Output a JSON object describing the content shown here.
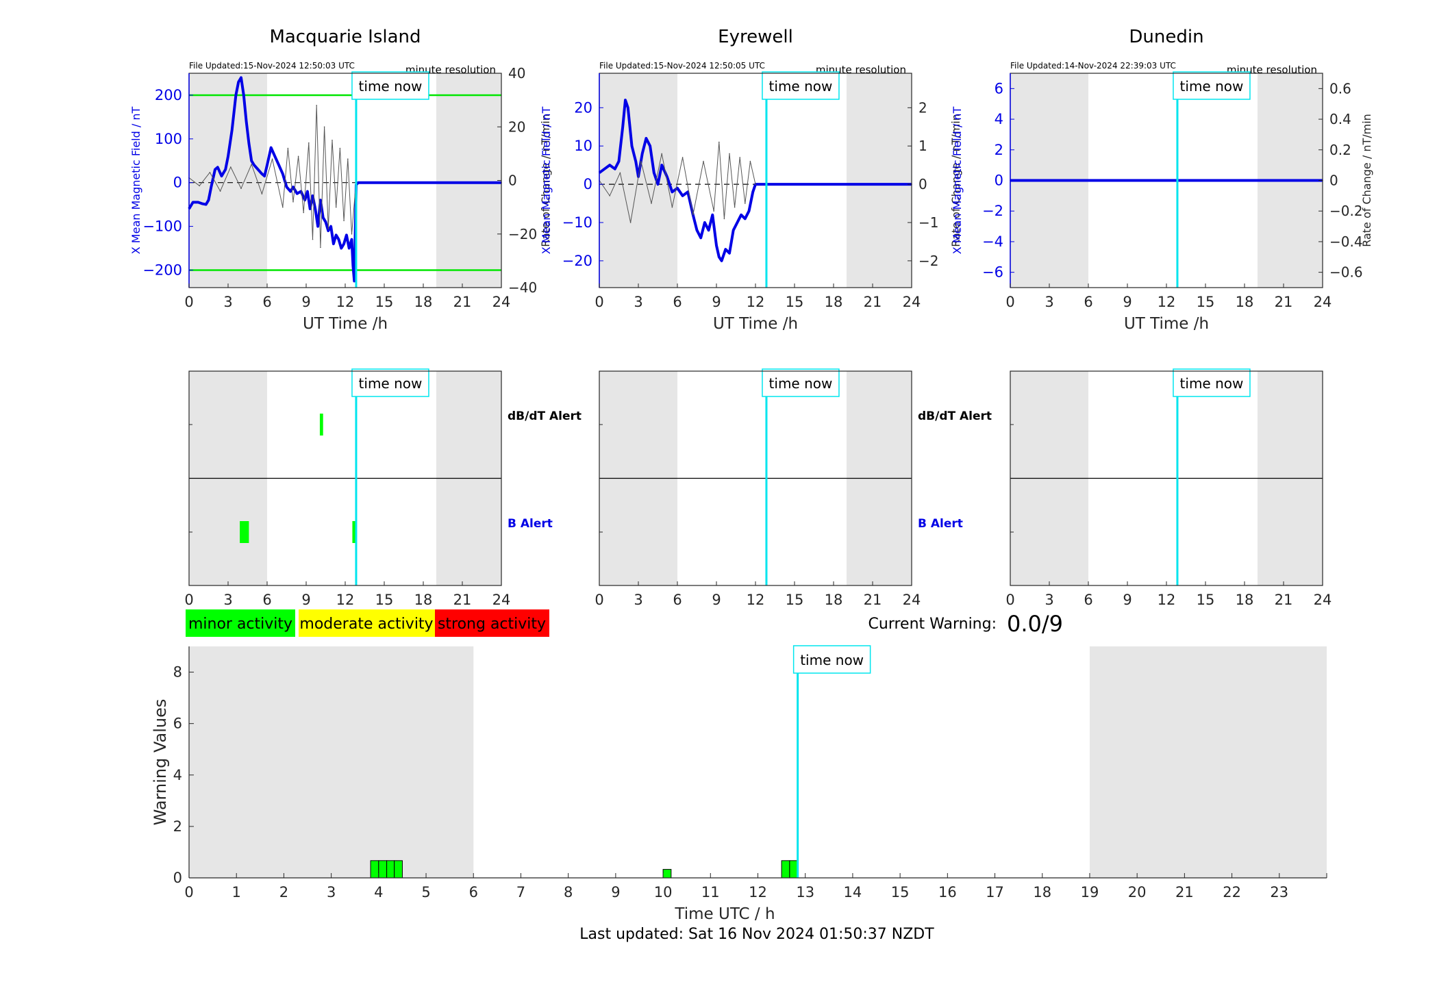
{
  "time_now_label": "time now",
  "resolution_label": "minute resolution",
  "x_axis_label": "UT Time /h",
  "left_axis_label": "X Mean Magnetic Field / nT",
  "right_axis_label": "Rate of Change / nT/min",
  "dbdt_label": "dB/dT Alert",
  "b_alert_label": "B Alert",
  "current_warning_label": "Current Warning:",
  "current_warning_value": "0.0/9",
  "legend": {
    "minor": "minor activity",
    "moderate": "moderate activity",
    "strong": "strong activity"
  },
  "footer": "Last updated: Sat 16 Nov 2024 01:50:37 NZDT",
  "colors": {
    "field": "#0000e6",
    "rate": "#555555",
    "now": "#00e5ee",
    "threshold": "#00e600",
    "night": "#e6e6e6",
    "minor": "#00ff00",
    "moderate": "#ffff00",
    "strong": "#ff0000"
  },
  "now_hour": 12.84,
  "chart_data": [
    {
      "type": "line",
      "title": "Macquarie Island",
      "file_updated": "File Updated:15-Nov-2024 12:50:03 UTC",
      "xlabel": "UT Time /h",
      "ylabel": "X Mean Magnetic Field / nT",
      "y2label": "Rate of Change / nT/min",
      "xlim": [
        0,
        24
      ],
      "xticks": [
        0,
        3,
        6,
        9,
        12,
        15,
        18,
        21,
        24
      ],
      "ylim": [
        -240,
        250
      ],
      "yticks": [
        -200,
        -100,
        0,
        100,
        200
      ],
      "y2lim": [
        -40,
        40
      ],
      "y2ticks": [
        -40,
        -20,
        0,
        20,
        40
      ],
      "thresholds": [
        200,
        -200
      ],
      "night_shading": [
        [
          0,
          6
        ],
        [
          19,
          24
        ]
      ],
      "series": [
        {
          "role": "field",
          "x": [
            0,
            0.3,
            0.7,
            1.0,
            1.3,
            1.5,
            1.7,
            2.0,
            2.2,
            2.5,
            2.8,
            3.0,
            3.3,
            3.6,
            3.8,
            4.0,
            4.2,
            4.4,
            4.6,
            4.8,
            5.0,
            5.3,
            5.6,
            5.8,
            6.0,
            6.3,
            6.6,
            6.9,
            7.2,
            7.5,
            7.8,
            8.0,
            8.3,
            8.6,
            8.9,
            9.1,
            9.3,
            9.5,
            9.7,
            9.9,
            10.1,
            10.3,
            10.5,
            10.7,
            10.9,
            11.1,
            11.3,
            11.5,
            11.7,
            11.9,
            12.1,
            12.3,
            12.5,
            12.6,
            12.7,
            12.84,
            13.0,
            24.0
          ],
          "y": [
            -60,
            -45,
            -45,
            -48,
            -50,
            -40,
            -10,
            30,
            35,
            15,
            30,
            60,
            120,
            200,
            230,
            240,
            200,
            140,
            90,
            50,
            40,
            30,
            20,
            15,
            40,
            80,
            60,
            40,
            20,
            -10,
            -20,
            -10,
            -25,
            -20,
            -40,
            -20,
            -60,
            -30,
            -60,
            -100,
            -40,
            -80,
            -90,
            -110,
            -100,
            -140,
            -120,
            -130,
            -150,
            -140,
            -120,
            -150,
            -130,
            -190,
            -225,
            -5,
            0,
            0
          ]
        },
        {
          "role": "rate",
          "x": [
            0,
            0.8,
            1.6,
            2.4,
            3.2,
            4.0,
            4.8,
            5.6,
            6.4,
            7.2,
            7.6,
            8.0,
            8.4,
            8.8,
            9.2,
            9.5,
            9.8,
            10.1,
            10.4,
            10.7,
            11.0,
            11.3,
            11.6,
            11.9,
            12.2,
            12.5,
            12.84
          ],
          "y": [
            1,
            -2,
            3,
            -4,
            5,
            -3,
            6,
            -5,
            8,
            -10,
            12,
            -8,
            9,
            -12,
            14,
            -22,
            28,
            -25,
            20,
            -18,
            15,
            -10,
            12,
            -15,
            8,
            -20,
            0
          ]
        }
      ],
      "alerts": {
        "dbdt": [
          [
            10.05,
            10.3
          ]
        ],
        "b": [
          [
            3.9,
            4.6
          ],
          [
            12.55,
            12.85
          ]
        ]
      }
    },
    {
      "type": "line",
      "title": "Eyrewell",
      "file_updated": "File Updated:15-Nov-2024 12:50:05 UTC",
      "xlabel": "UT Time /h",
      "ylabel": "X Mean Magnetic Field / nT",
      "y2label": "Rate of Change / nT/min",
      "xlim": [
        0,
        24
      ],
      "xticks": [
        0,
        3,
        6,
        9,
        12,
        15,
        18,
        21,
        24
      ],
      "ylim": [
        -27,
        29
      ],
      "yticks": [
        -20,
        -10,
        0,
        10,
        20
      ],
      "y2lim": [
        -2.7,
        2.9
      ],
      "y2ticks": [
        -2,
        -1,
        0,
        1,
        2
      ],
      "night_shading": [
        [
          0,
          6
        ],
        [
          19,
          24
        ]
      ],
      "series": [
        {
          "role": "field",
          "x": [
            0,
            0.4,
            0.8,
            1.2,
            1.5,
            1.8,
            2.0,
            2.2,
            2.5,
            2.8,
            3.0,
            3.3,
            3.6,
            3.9,
            4.2,
            4.5,
            4.8,
            5.2,
            5.6,
            6.0,
            6.4,
            6.8,
            7.2,
            7.5,
            7.8,
            8.1,
            8.4,
            8.7,
            9.0,
            9.2,
            9.4,
            9.7,
            10.0,
            10.3,
            10.6,
            10.9,
            11.2,
            11.5,
            11.8,
            12.0,
            12.84,
            24.0
          ],
          "y": [
            3,
            4,
            5,
            4,
            6,
            15,
            22,
            20,
            10,
            6,
            2,
            8,
            12,
            10,
            3,
            0,
            5,
            2,
            -2,
            -1,
            -3,
            -2,
            -8,
            -12,
            -14,
            -10,
            -12,
            -8,
            -16,
            -19,
            -20,
            -17,
            -18,
            -12,
            -10,
            -8,
            -9,
            -7,
            -2,
            0,
            0,
            0
          ]
        },
        {
          "role": "rate",
          "x": [
            0,
            0.8,
            1.6,
            2.4,
            3.2,
            4.0,
            4.8,
            5.6,
            6.4,
            7.2,
            8.0,
            8.8,
            9.2,
            9.6,
            10.0,
            10.4,
            10.8,
            11.2,
            11.6,
            12.0
          ],
          "y": [
            0.1,
            -0.3,
            0.3,
            -1.0,
            0.6,
            -0.5,
            0.8,
            -0.6,
            0.7,
            -0.8,
            0.6,
            -0.7,
            1.1,
            -0.9,
            0.8,
            -0.6,
            0.7,
            -0.5,
            0.6,
            0
          ]
        }
      ],
      "alerts": {
        "dbdt": [],
        "b": []
      }
    },
    {
      "type": "line",
      "title": "Dunedin",
      "file_updated": "File Updated:14-Nov-2024 22:39:03 UTC",
      "xlabel": "UT Time /h",
      "ylabel": "X Mean Magnetic Field / nT",
      "y2label": "Rate of Change / nT/min",
      "xlim": [
        0,
        24
      ],
      "xticks": [
        0,
        3,
        6,
        9,
        12,
        15,
        18,
        21,
        24
      ],
      "ylim": [
        -7,
        7
      ],
      "yticks": [
        -6,
        -4,
        -2,
        0,
        2,
        4,
        6
      ],
      "y2lim": [
        -0.7,
        0.7
      ],
      "y2ticks": [
        -0.6,
        -0.4,
        -0.2,
        0,
        0.2,
        0.4,
        0.6
      ],
      "night_shading": [
        [
          0,
          6
        ],
        [
          19,
          24
        ]
      ],
      "series": [
        {
          "role": "field",
          "x": [
            0,
            24
          ],
          "y": [
            0,
            0
          ]
        }
      ],
      "alerts": {
        "dbdt": [],
        "b": []
      }
    },
    {
      "type": "bar",
      "xlabel": "Time UTC / h",
      "ylabel": "Warning Values",
      "xlim": [
        0,
        24
      ],
      "xticks": [
        0,
        1,
        2,
        3,
        4,
        5,
        6,
        7,
        8,
        9,
        10,
        11,
        12,
        13,
        14,
        15,
        16,
        17,
        18,
        19,
        20,
        21,
        22,
        23
      ],
      "ylim": [
        0,
        9
      ],
      "yticks": [
        0,
        2,
        4,
        6,
        8
      ],
      "night_shading": [
        [
          0,
          6
        ],
        [
          19,
          24
        ]
      ],
      "bars": [
        {
          "x0": 3.83,
          "x1": 4.0,
          "value": 0.67
        },
        {
          "x0": 4.0,
          "x1": 4.17,
          "value": 0.67
        },
        {
          "x0": 4.17,
          "x1": 4.33,
          "value": 0.67
        },
        {
          "x0": 4.33,
          "x1": 4.5,
          "value": 0.67
        },
        {
          "x0": 10.0,
          "x1": 10.17,
          "value": 0.33
        },
        {
          "x0": 12.5,
          "x1": 12.67,
          "value": 0.67
        },
        {
          "x0": 12.67,
          "x1": 12.84,
          "value": 0.67
        }
      ]
    }
  ]
}
